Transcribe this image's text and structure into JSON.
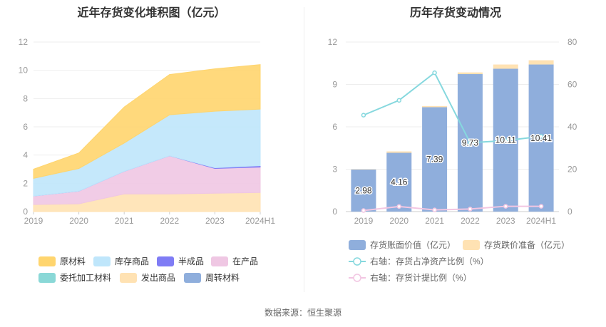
{
  "titles": {
    "left": "近年存货变化堆积图（亿元）",
    "right": "历年存货变动情况"
  },
  "source": "数据来源：恒生聚源",
  "colors": {
    "原材料": "#FFD56E",
    "库存商品": "#BFE6FB",
    "半成品": "#7F7CF5",
    "在产品": "#EFC7E3",
    "委托加工材料": "#8AD8D7",
    "发出商品": "#FFE2B3",
    "周转材料": "#8FAEDC",
    "bar": "#8FAEDC",
    "reserve": "#FFE2B3",
    "line_ratio": "#86D8DE",
    "line_provision": "#F2C6E2"
  },
  "chart_data": [
    {
      "type": "area",
      "title": "近年存货变化堆积图（亿元）",
      "categories": [
        "2019",
        "2020",
        "2021",
        "2022",
        "2023",
        "2024H1"
      ],
      "ylim": [
        0,
        12
      ],
      "yticks": [
        "0",
        "2",
        "4",
        "6",
        "8",
        "10",
        "12"
      ],
      "stacked": true,
      "grid": true,
      "legend_position": "bottom",
      "series": [
        {
          "name": "发出商品",
          "values": [
            0.5,
            0.55,
            1.25,
            1.25,
            1.3,
            1.35
          ]
        },
        {
          "name": "在产品",
          "values": [
            0.6,
            0.9,
            1.6,
            2.7,
            1.75,
            1.8
          ]
        },
        {
          "name": "半成品",
          "values": [
            0,
            0,
            0,
            0,
            0.05,
            0.1
          ]
        },
        {
          "name": "库存商品",
          "values": [
            1.25,
            1.6,
            2.0,
            2.9,
            4.0,
            4.0
          ]
        },
        {
          "name": "原材料",
          "values": [
            0.65,
            1.1,
            2.55,
            2.85,
            3.0,
            3.15
          ]
        },
        {
          "name": "委托加工材料",
          "values": [
            0,
            0,
            0,
            0,
            0,
            0
          ]
        },
        {
          "name": "周转材料",
          "values": [
            0,
            0,
            0,
            0,
            0,
            0
          ]
        }
      ],
      "legend": [
        "原材料",
        "库存商品",
        "半成品",
        "在产品",
        "委托加工材料",
        "发出商品",
        "周转材料"
      ]
    },
    {
      "type": "bar",
      "title": "历年存货变动情况",
      "categories": [
        "2019",
        "2020",
        "2021",
        "2022",
        "2023",
        "2024H1"
      ],
      "ylim": [
        0,
        12
      ],
      "yticks": [
        "0",
        "3",
        "6",
        "9",
        "12"
      ],
      "y2lim": [
        0,
        80
      ],
      "y2ticks": [
        "0",
        "20",
        "40",
        "60",
        "80"
      ],
      "grid": true,
      "legend_position": "bottom",
      "series": [
        {
          "name": "存货账面价值（亿元）",
          "type": "bar",
          "values": [
            2.98,
            4.16,
            7.39,
            9.73,
            10.11,
            10.41
          ],
          "labels": [
            "2.98",
            "4.16",
            "7.39",
            "9.73",
            "10.11",
            "10.41"
          ]
        },
        {
          "name": "存货跌价准备（亿元）",
          "type": "bar",
          "values": [
            0.02,
            0.1,
            0.08,
            0.12,
            0.3,
            0.3
          ]
        },
        {
          "name": "右轴：存货占净资产比例（%）",
          "type": "line",
          "axis": "right",
          "values": [
            45.5,
            52.5,
            65.5,
            32.5,
            33.5,
            35.5
          ]
        },
        {
          "name": "右轴：存货计提比例（%）",
          "type": "line",
          "axis": "right",
          "values": [
            0.5,
            2.4,
            0.8,
            1.2,
            2.5,
            2.5
          ]
        }
      ]
    }
  ]
}
